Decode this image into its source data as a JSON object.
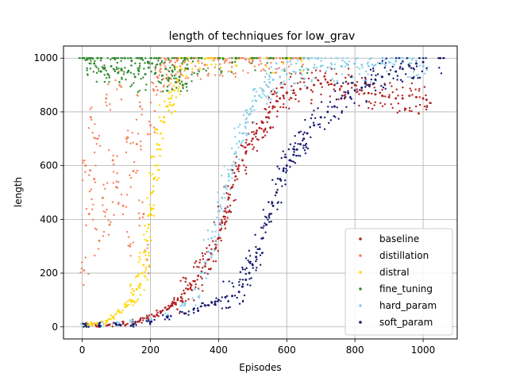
{
  "chart_data": {
    "type": "scatter",
    "title": "length of techniques for low_grav",
    "xlabel": "Episodes",
    "ylabel": "length",
    "xlim": [
      -55,
      1100
    ],
    "ylim": [
      -45,
      1045
    ],
    "xticks": [
      0,
      200,
      400,
      600,
      800,
      1000
    ],
    "yticks": [
      0,
      200,
      400,
      600,
      800,
      1000
    ],
    "grid": true,
    "legend_position": "lower-right",
    "series": [
      {
        "name": "baseline",
        "color": "#b22222",
        "marker_size": 1.5,
        "points": [
          [
            10,
            5
          ],
          [
            40,
            6
          ],
          [
            80,
            8
          ],
          [
            120,
            12
          ],
          [
            150,
            18
          ],
          [
            170,
            25
          ],
          [
            190,
            32
          ],
          [
            210,
            40
          ],
          [
            230,
            52
          ],
          [
            250,
            65
          ],
          [
            260,
            78
          ],
          [
            270,
            90
          ],
          [
            280,
            100
          ],
          [
            290,
            110
          ],
          [
            300,
            125
          ],
          [
            310,
            140
          ],
          [
            320,
            155
          ],
          [
            330,
            170
          ],
          [
            340,
            190
          ],
          [
            350,
            205
          ],
          [
            360,
            225
          ],
          [
            370,
            250
          ],
          [
            380,
            270
          ],
          [
            390,
            290
          ],
          [
            400,
            330
          ],
          [
            405,
            360
          ],
          [
            410,
            390
          ],
          [
            415,
            410
          ],
          [
            420,
            440
          ],
          [
            430,
            480
          ],
          [
            440,
            520
          ],
          [
            450,
            560
          ],
          [
            460,
            600
          ],
          [
            470,
            620
          ],
          [
            480,
            650
          ],
          [
            490,
            680
          ],
          [
            500,
            700
          ],
          [
            510,
            720
          ],
          [
            520,
            740
          ],
          [
            530,
            760
          ],
          [
            540,
            780
          ],
          [
            550,
            800
          ],
          [
            560,
            820
          ],
          [
            570,
            840
          ],
          [
            580,
            850
          ],
          [
            590,
            860
          ],
          [
            600,
            870
          ],
          [
            620,
            880
          ],
          [
            640,
            885
          ],
          [
            660,
            890
          ],
          [
            680,
            900
          ],
          [
            700,
            905
          ],
          [
            720,
            910
          ],
          [
            740,
            900
          ],
          [
            760,
            895
          ],
          [
            780,
            905
          ],
          [
            800,
            900
          ],
          [
            820,
            880
          ],
          [
            840,
            870
          ],
          [
            860,
            865
          ],
          [
            880,
            860
          ],
          [
            900,
            855
          ],
          [
            920,
            850
          ],
          [
            940,
            850
          ],
          [
            960,
            860
          ],
          [
            980,
            855
          ],
          [
            1000,
            850
          ],
          [
            1010,
            845
          ]
        ]
      },
      {
        "name": "distillation",
        "color": "#f4845f",
        "marker_size": 1.5,
        "points": [
          [
            5,
            210
          ],
          [
            10,
            600
          ],
          [
            20,
            420
          ],
          [
            25,
            780
          ],
          [
            35,
            550
          ],
          [
            45,
            700
          ],
          [
            50,
            320
          ],
          [
            60,
            480
          ],
          [
            70,
            850
          ],
          [
            80,
            380
          ],
          [
            90,
            620
          ],
          [
            100,
            520
          ],
          [
            110,
            900
          ],
          [
            120,
            450
          ],
          [
            130,
            700
          ],
          [
            140,
            300
          ],
          [
            150,
            580
          ],
          [
            160,
            680
          ],
          [
            170,
            820
          ],
          [
            180,
            420
          ],
          [
            190,
            250
          ],
          [
            200,
            750
          ],
          [
            210,
            880
          ],
          [
            220,
            930
          ],
          [
            230,
            960
          ],
          [
            240,
            980
          ],
          [
            250,
            920
          ],
          [
            260,
            990
          ],
          [
            270,
            970
          ],
          [
            280,
            995
          ],
          [
            290,
            940
          ],
          [
            300,
            985
          ],
          [
            320,
            1000
          ],
          [
            340,
            990
          ],
          [
            360,
            975
          ],
          [
            380,
            1000
          ],
          [
            400,
            995
          ],
          [
            420,
            990
          ],
          [
            440,
            985
          ],
          [
            460,
            1000
          ],
          [
            480,
            995
          ],
          [
            500,
            990
          ],
          [
            520,
            1000
          ],
          [
            540,
            1000
          ],
          [
            560,
            998
          ],
          [
            580,
            1000
          ],
          [
            600,
            1000
          ],
          [
            620,
            1000
          ],
          [
            640,
            1000
          ]
        ]
      },
      {
        "name": "distral",
        "color": "#ffd700",
        "marker_size": 1.5,
        "points": [
          [
            10,
            8
          ],
          [
            30,
            10
          ],
          [
            50,
            14
          ],
          [
            70,
            22
          ],
          [
            90,
            35
          ],
          [
            110,
            55
          ],
          [
            130,
            80
          ],
          [
            140,
            100
          ],
          [
            150,
            120
          ],
          [
            160,
            140
          ],
          [
            170,
            160
          ],
          [
            175,
            200
          ],
          [
            180,
            230
          ],
          [
            185,
            280
          ],
          [
            190,
            320
          ],
          [
            195,
            380
          ],
          [
            200,
            420
          ],
          [
            205,
            500
          ],
          [
            210,
            550
          ],
          [
            215,
            600
          ],
          [
            220,
            680
          ],
          [
            230,
            720
          ],
          [
            240,
            780
          ],
          [
            250,
            820
          ],
          [
            260,
            850
          ],
          [
            270,
            880
          ],
          [
            280,
            920
          ],
          [
            290,
            960
          ],
          [
            300,
            990
          ],
          [
            320,
            1000
          ],
          [
            350,
            1000
          ],
          [
            380,
            1000
          ],
          [
            400,
            1000
          ],
          [
            450,
            1000
          ],
          [
            500,
            1000
          ],
          [
            550,
            1000
          ],
          [
            600,
            1000
          ],
          [
            650,
            1000
          ]
        ]
      },
      {
        "name": "fine_tuning",
        "color": "#2e8b2e",
        "marker_size": 1.5,
        "points": [
          [
            5,
            1000
          ],
          [
            15,
            995
          ],
          [
            25,
            1000
          ],
          [
            35,
            980
          ],
          [
            45,
            1000
          ],
          [
            55,
            950
          ],
          [
            65,
            960
          ],
          [
            75,
            940
          ],
          [
            85,
            970
          ],
          [
            95,
            1000
          ],
          [
            105,
            945
          ],
          [
            115,
            960
          ],
          [
            125,
            1000
          ],
          [
            135,
            950
          ],
          [
            145,
            990
          ],
          [
            155,
            930
          ],
          [
            165,
            955
          ],
          [
            175,
            1000
          ],
          [
            185,
            940
          ],
          [
            195,
            965
          ],
          [
            205,
            980
          ],
          [
            215,
            945
          ],
          [
            225,
            1000
          ],
          [
            235,
            935
          ],
          [
            245,
            960
          ],
          [
            255,
            925
          ],
          [
            265,
            950
          ],
          [
            275,
            910
          ],
          [
            285,
            930
          ],
          [
            295,
            900
          ],
          [
            300,
            1000
          ],
          [
            310,
            960
          ],
          [
            320,
            1000
          ],
          [
            350,
            1000
          ],
          [
            400,
            1000
          ],
          [
            450,
            1000
          ],
          [
            500,
            1000
          ],
          [
            550,
            1000
          ],
          [
            600,
            1000
          ],
          [
            650,
            1000
          ]
        ]
      },
      {
        "name": "hard_param",
        "color": "#87ceeb",
        "marker_size": 1.5,
        "points": [
          [
            10,
            6
          ],
          [
            50,
            8
          ],
          [
            100,
            10
          ],
          [
            150,
            15
          ],
          [
            200,
            22
          ],
          [
            250,
            40
          ],
          [
            300,
            80
          ],
          [
            330,
            140
          ],
          [
            350,
            200
          ],
          [
            370,
            280
          ],
          [
            380,
            330
          ],
          [
            390,
            380
          ],
          [
            400,
            430
          ],
          [
            410,
            480
          ],
          [
            420,
            520
          ],
          [
            430,
            560
          ],
          [
            440,
            600
          ],
          [
            450,
            650
          ],
          [
            460,
            690
          ],
          [
            470,
            720
          ],
          [
            480,
            760
          ],
          [
            490,
            790
          ],
          [
            500,
            820
          ],
          [
            510,
            840
          ],
          [
            520,
            860
          ],
          [
            530,
            880
          ],
          [
            540,
            900
          ],
          [
            550,
            910
          ],
          [
            560,
            920
          ],
          [
            580,
            930
          ],
          [
            600,
            940
          ],
          [
            620,
            950
          ],
          [
            640,
            955
          ],
          [
            660,
            960
          ],
          [
            680,
            965
          ],
          [
            700,
            970
          ],
          [
            720,
            965
          ],
          [
            740,
            960
          ],
          [
            760,
            970
          ],
          [
            780,
            975
          ],
          [
            800,
            980
          ],
          [
            820,
            975
          ],
          [
            840,
            970
          ],
          [
            860,
            975
          ],
          [
            880,
            980
          ],
          [
            900,
            985
          ],
          [
            920,
            990
          ],
          [
            940,
            985
          ],
          [
            960,
            980
          ],
          [
            980,
            990
          ],
          [
            1000,
            970
          ]
        ]
      },
      {
        "name": "soft_param",
        "color": "#191970",
        "marker_size": 1.5,
        "points": [
          [
            10,
            5
          ],
          [
            50,
            6
          ],
          [
            100,
            8
          ],
          [
            150,
            10
          ],
          [
            200,
            18
          ],
          [
            250,
            35
          ],
          [
            300,
            50
          ],
          [
            340,
            60
          ],
          [
            360,
            80
          ],
          [
            380,
            90
          ],
          [
            400,
            100
          ],
          [
            420,
            110
          ],
          [
            440,
            115
          ],
          [
            460,
            130
          ],
          [
            470,
            150
          ],
          [
            480,
            175
          ],
          [
            490,
            200
          ],
          [
            500,
            230
          ],
          [
            510,
            260
          ],
          [
            520,
            290
          ],
          [
            530,
            330
          ],
          [
            540,
            380
          ],
          [
            550,
            420
          ],
          [
            560,
            450
          ],
          [
            570,
            500
          ],
          [
            580,
            550
          ],
          [
            590,
            580
          ],
          [
            600,
            600
          ],
          [
            610,
            620
          ],
          [
            620,
            640
          ],
          [
            630,
            660
          ],
          [
            640,
            680
          ],
          [
            650,
            700
          ],
          [
            660,
            720
          ],
          [
            680,
            750
          ],
          [
            700,
            780
          ],
          [
            720,
            800
          ],
          [
            740,
            820
          ],
          [
            760,
            850
          ],
          [
            780,
            870
          ],
          [
            800,
            880
          ],
          [
            820,
            890
          ],
          [
            840,
            900
          ],
          [
            860,
            920
          ],
          [
            880,
            930
          ],
          [
            900,
            940
          ],
          [
            920,
            950
          ],
          [
            940,
            960
          ],
          [
            960,
            970
          ],
          [
            980,
            980
          ],
          [
            1000,
            985
          ],
          [
            1050,
            1000
          ]
        ]
      }
    ]
  }
}
